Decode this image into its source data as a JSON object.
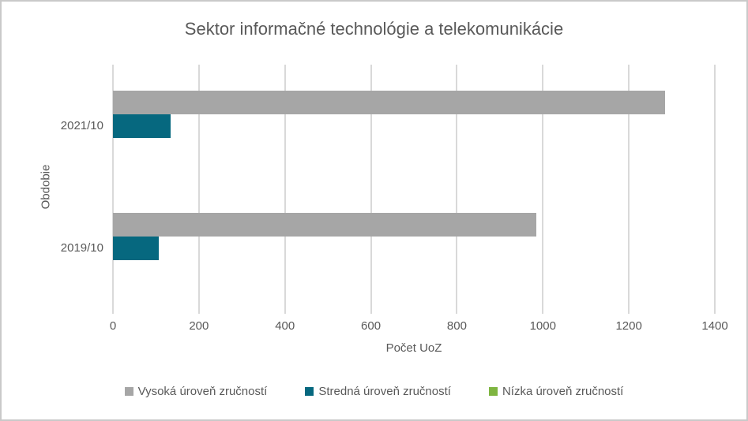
{
  "window": {
    "background": "#FFFFFF",
    "border_color": "#C9C9C9"
  },
  "chart_data": {
    "type": "bar",
    "orientation": "horizontal",
    "title": "Sektor informačné technológie a telekomunikácie",
    "xlabel": "Počet UoZ",
    "ylabel": "Obdobie",
    "categories": [
      "2021/10",
      "2019/10"
    ],
    "series": [
      {
        "name": "Vysoká úroveň zručností",
        "color": "#A6A6A6",
        "values": [
          1284,
          985
        ]
      },
      {
        "name": "Stredná úroveň zručností",
        "color": "#06687F",
        "values": [
          134,
          107
        ]
      },
      {
        "name": "Nízka úroveň zručností",
        "color": "#7FB541",
        "values": [
          0,
          0
        ]
      }
    ],
    "xlim": [
      0,
      1400
    ],
    "xticks": [
      0,
      200,
      400,
      600,
      800,
      1000,
      1200,
      1400
    ],
    "grid": "vertical",
    "legend_position": "bottom",
    "text_color": "#595959",
    "gridline_color": "#D9D9D9"
  }
}
